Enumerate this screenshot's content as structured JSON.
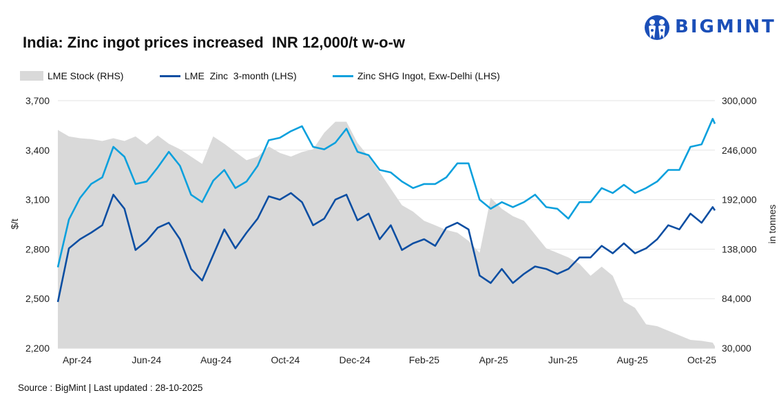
{
  "title": "India: Zinc ingot prices increased  INR 12,000/t w-o-w",
  "logo": {
    "text": "BIGMINT",
    "color": "#1B4FB8"
  },
  "legend": [
    {
      "label": "LME Stock (RHS)",
      "color": "#D9D9D9",
      "kind": "area"
    },
    {
      "label": "LME  Zinc  3-month (LHS)",
      "color": "#0B4EA2",
      "kind": "line"
    },
    {
      "label": "Zinc SHG Ingot, Exw-Delhi (LHS)",
      "color": "#0AA0DD",
      "kind": "line"
    }
  ],
  "source": "Source : BigMint | Last updated : 28-10-2025",
  "chart_data": {
    "type": "line",
    "title": "India: Zinc ingot prices increased  INR 12,000/t w-o-w",
    "ylabel": "$/t",
    "y2label": "in tonnes",
    "ylim": [
      2200,
      3700
    ],
    "y2lim": [
      30000,
      300000
    ],
    "yticks": [
      "3,700",
      "3,400",
      "3,100",
      "2,800",
      "2,500",
      "2,200"
    ],
    "y2ticks": [
      "300,000",
      "246,000",
      "192,000",
      "138,000",
      "84,000",
      "30,000"
    ],
    "xlim": [
      "2024-03-15",
      "2025-10-28"
    ],
    "xticks": [
      "Apr-24",
      "Jun-24",
      "Aug-24",
      "Oct-24",
      "Dec-24",
      "Feb-25",
      "Apr-25",
      "Jun-25",
      "Aug-25",
      "Oct-25"
    ],
    "grid": true,
    "legend_position": "top-left",
    "x": [
      "2024-03-15",
      "2024-03-25",
      "2024-04-04",
      "2024-04-14",
      "2024-04-24",
      "2024-05-04",
      "2024-05-14",
      "2024-05-24",
      "2024-06-03",
      "2024-06-13",
      "2024-06-23",
      "2024-07-03",
      "2024-07-13",
      "2024-07-23",
      "2024-08-02",
      "2024-08-12",
      "2024-08-22",
      "2024-09-01",
      "2024-09-11",
      "2024-09-21",
      "2024-10-01",
      "2024-10-11",
      "2024-10-21",
      "2024-10-31",
      "2024-11-10",
      "2024-11-20",
      "2024-11-30",
      "2024-12-10",
      "2024-12-20",
      "2024-12-30",
      "2025-01-09",
      "2025-01-19",
      "2025-01-29",
      "2025-02-08",
      "2025-02-18",
      "2025-02-28",
      "2025-03-10",
      "2025-03-20",
      "2025-03-30",
      "2025-04-09",
      "2025-04-19",
      "2025-04-29",
      "2025-05-09",
      "2025-05-19",
      "2025-05-29",
      "2025-06-08",
      "2025-06-18",
      "2025-06-28",
      "2025-07-08",
      "2025-07-18",
      "2025-07-28",
      "2025-08-07",
      "2025-08-17",
      "2025-08-27",
      "2025-09-06",
      "2025-09-16",
      "2025-09-26",
      "2025-10-06",
      "2025-10-16",
      "2025-10-26",
      "2025-10-28"
    ],
    "series": [
      {
        "name": "LME Stock (RHS)",
        "axis": "right",
        "kind": "area",
        "color": "#D9D9D9",
        "values": [
          268000,
          261000,
          259000,
          258000,
          256000,
          259000,
          256000,
          261000,
          252000,
          262000,
          253000,
          247000,
          239000,
          231000,
          261000,
          253000,
          244000,
          235000,
          239000,
          250000,
          243000,
          239000,
          244000,
          247000,
          265000,
          277000,
          277000,
          254000,
          239000,
          222000,
          204000,
          186000,
          179000,
          169000,
          164000,
          159000,
          156000,
          147000,
          134000,
          194000,
          182000,
          174000,
          169000,
          154000,
          139000,
          134000,
          129000,
          122000,
          109000,
          119000,
          109000,
          81000,
          74000,
          56000,
          54000,
          49000,
          44000,
          39000,
          38000,
          36000,
          32000
        ]
      },
      {
        "name": "LME  Zinc  3-month (LHS)",
        "axis": "left",
        "kind": "line",
        "color": "#0B4EA2",
        "values": [
          2480,
          2805,
          2860,
          2900,
          2945,
          3130,
          3045,
          2795,
          2850,
          2930,
          2960,
          2860,
          2680,
          2610,
          2765,
          2920,
          2805,
          2900,
          2985,
          3120,
          3100,
          3140,
          3085,
          2945,
          2985,
          3100,
          3130,
          2975,
          3015,
          2860,
          2945,
          2795,
          2835,
          2860,
          2820,
          2930,
          2960,
          2920,
          2640,
          2595,
          2680,
          2595,
          2650,
          2695,
          2680,
          2650,
          2680,
          2750,
          2750,
          2820,
          2775,
          2835,
          2775,
          2805,
          2860,
          2945,
          2920,
          3015,
          2960,
          3055,
          3035
        ]
      },
      {
        "name": "Zinc SHG Ingot, Exw-Delhi (LHS)",
        "axis": "left",
        "kind": "line",
        "color": "#0AA0DD",
        "values": [
          2690,
          2980,
          3110,
          3195,
          3235,
          3420,
          3360,
          3195,
          3210,
          3295,
          3390,
          3305,
          3130,
          3085,
          3215,
          3280,
          3170,
          3210,
          3305,
          3460,
          3475,
          3515,
          3545,
          3420,
          3405,
          3445,
          3530,
          3390,
          3370,
          3280,
          3265,
          3210,
          3170,
          3195,
          3195,
          3235,
          3320,
          3320,
          3100,
          3045,
          3085,
          3055,
          3085,
          3130,
          3055,
          3045,
          2985,
          3085,
          3085,
          3170,
          3140,
          3190,
          3140,
          3170,
          3210,
          3280,
          3280,
          3420,
          3435,
          3590,
          3560
        ]
      }
    ]
  }
}
